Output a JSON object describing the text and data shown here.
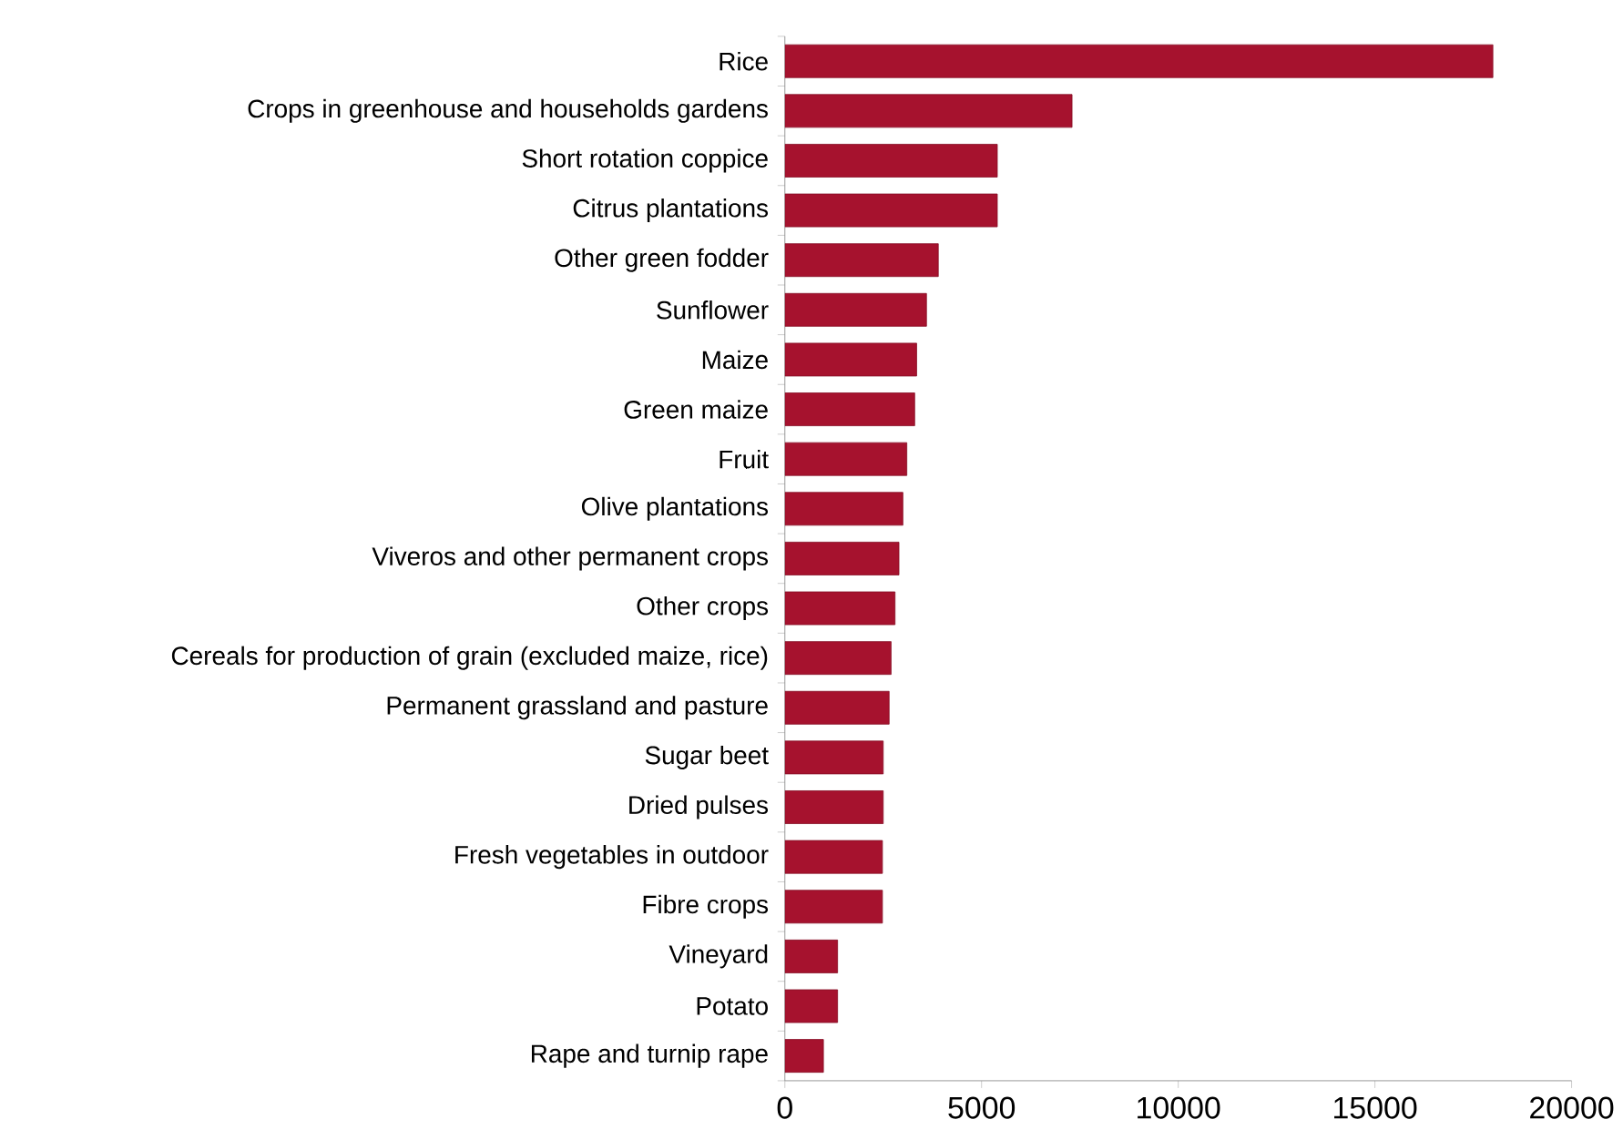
{
  "chart_data": {
    "type": "bar",
    "orientation": "horizontal",
    "color": "#a6122e",
    "categories": [
      "Rice",
      "Crops in greenhouse and households gardens",
      "Short rotation coppice",
      "Citrus plantations",
      "Other green fodder",
      "Sunflower",
      "Maize",
      "Green maize",
      "Fruit",
      "Olive plantations",
      "Viveros and other permanent crops",
      "Other crops",
      "Cereals for production of grain (excluded maize, rice)",
      "Permanent grassland and pasture",
      "Sugar beet",
      "Dried pulses",
      "Fresh vegetables in outdoor",
      "Fibre crops",
      "Vineyard",
      "Potato",
      "Rape and turnip rape"
    ],
    "values": [
      18000,
      7300,
      5400,
      5400,
      3900,
      3600,
      3350,
      3300,
      3100,
      3000,
      2900,
      2800,
      2700,
      2650,
      2500,
      2500,
      2480,
      2480,
      1340,
      1340,
      980
    ],
    "xlim": [
      0,
      20000
    ],
    "xticks": [
      0,
      5000,
      10000,
      15000,
      20000
    ],
    "grid": false
  }
}
